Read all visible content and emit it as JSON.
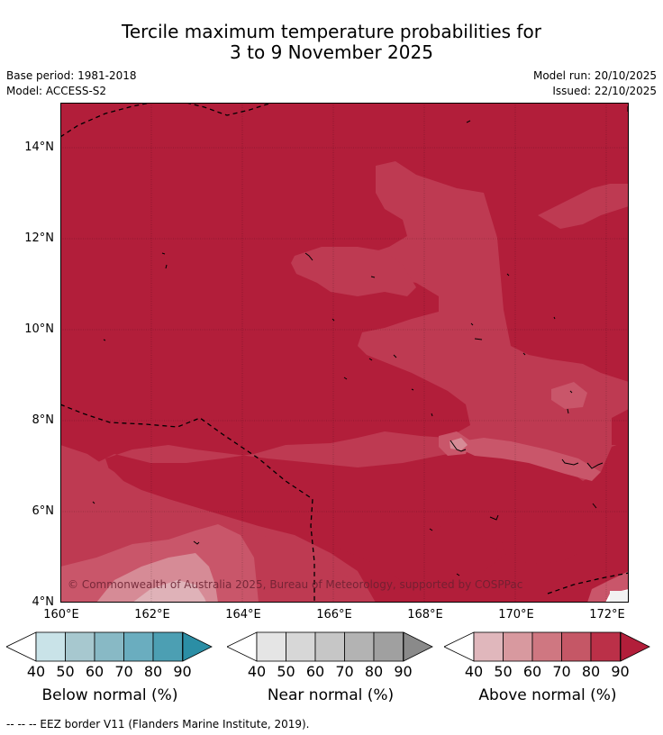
{
  "title_line1": "Tercile maximum temperature probabilities for",
  "title_line2": "3 to 9 November 2025",
  "base_period": "Base period: 1981-2018",
  "model": "Model: ACCESS-S2",
  "model_run": "Model run: 20/10/2025",
  "issued": "Issued: 22/10/2025",
  "copyright": "© Commonwealth of Australia 2025, Bureau of Meteorology, supported by COSPPac",
  "map": {
    "lon_range": [
      160,
      172.5
    ],
    "lat_range": [
      4,
      15
    ],
    "y_ticks": [
      "14°N",
      "12°N",
      "10°N",
      "8°N",
      "6°N",
      "4°N"
    ],
    "x_ticks": [
      "160°E",
      "162°E",
      "164°E",
      "166°E",
      "168°E",
      "170°E",
      "172°E"
    ],
    "fill_colors": {
      "above_90": "#b21e3a",
      "above_80": "#be3a52",
      "above_70": "#c9566a",
      "above_60": "#d68b96",
      "above_50": "#dfb2b8"
    }
  },
  "colorbars": [
    {
      "title": "Below normal (%)",
      "labels": [
        "40",
        "50",
        "60",
        "70",
        "80",
        "90"
      ],
      "colors": [
        "#c9e3e8",
        "#a7c8cf",
        "#88b9c5",
        "#6aadbf",
        "#4c9fb3",
        "#2b8ea5"
      ]
    },
    {
      "title": "Near normal (%)",
      "labels": [
        "40",
        "50",
        "60",
        "70",
        "80",
        "90"
      ],
      "colors": [
        "#e5e5e5",
        "#d7d7d7",
        "#c6c6c6",
        "#b3b3b3",
        "#a0a0a0",
        "#8a8a8a"
      ]
    },
    {
      "title": "Above normal (%)",
      "labels": [
        "40",
        "50",
        "60",
        "70",
        "80",
        "90"
      ],
      "colors": [
        "#e0b7bc",
        "#d8999f",
        "#cf7781",
        "#c55766",
        "#bb3048",
        "#b21e3a"
      ]
    }
  ],
  "footnote": "--  --  -- EEZ border V11 (Flanders Marine Institute, 2019)."
}
